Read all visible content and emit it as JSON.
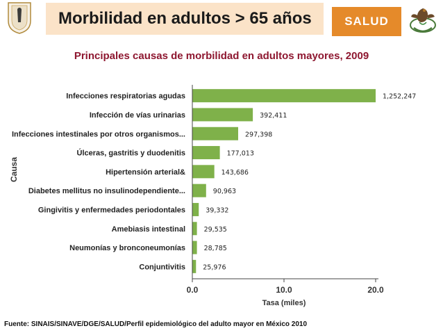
{
  "header": {
    "title": "Morbilidad en adultos > 65 años",
    "brand_label": "SALUD",
    "left_logo": "institution-seal",
    "right_logo": "mexican-eagle-emblem"
  },
  "footer": {
    "source": "Fuente: SINAIS/SINAVE/DGE/SALUD/Perfil epidemiológico del adulto mayor en México 2010"
  },
  "colors": {
    "bar": "#7fb14a",
    "title_bg": "#fbe3c8",
    "brand_bg": "#e58a2a",
    "subtitle": "#8e1730"
  },
  "chart_data": {
    "type": "bar",
    "orientation": "horizontal",
    "title": "Principales causas de morbilidad en adultos mayores, 2009",
    "xlabel": "Tasa (miles)",
    "ylabel": "Causa",
    "xlim": [
      0,
      20
    ],
    "xticks": [
      "0.0",
      "10.0",
      "20.0"
    ],
    "categories": [
      "Infecciones respiratorias agudas",
      "Infección de vías urinarias",
      "Infecciones intestinales por otros organismos...",
      "Úlceras, gastritis y duodenitis",
      "Hipertensión arterial&",
      "Diabetes mellitus no insulinodependiente...",
      "Gingivitis y enfermedades periodontales",
      "Amebiasis intestinal",
      "Neumonías y bronconeumonías",
      "Conjuntivitis"
    ],
    "values": [
      20.0,
      6.6,
      5.0,
      3.0,
      2.4,
      1.5,
      0.7,
      0.5,
      0.5,
      0.4
    ],
    "data_labels": [
      "1,252,247",
      "392,411",
      "297,398",
      "177,013",
      "143,686",
      "90,963",
      "39,332",
      "29,535",
      "28,785",
      "25,976"
    ],
    "grid": false,
    "legend": "none"
  }
}
